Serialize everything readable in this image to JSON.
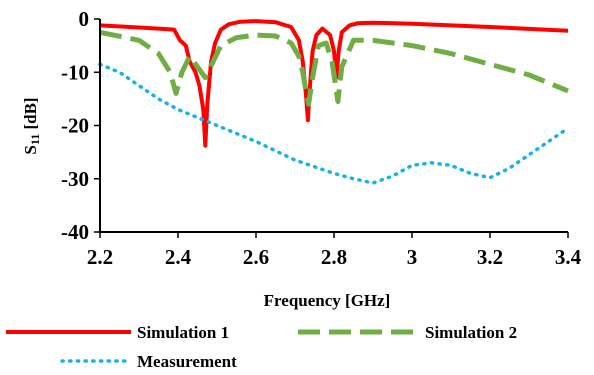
{
  "chart_data": {
    "type": "line",
    "title": "",
    "xlabel": "Frequency [GHz]",
    "ylabel": "S11 [dB]",
    "ylabel_main": "S",
    "ylabel_sub": "11",
    "ylabel_unit": " [dB]",
    "xlim": [
      2.2,
      3.4
    ],
    "ylim": [
      -40,
      0
    ],
    "x_ticks": [
      "2.2",
      "2.4",
      "2.6",
      "2.8",
      "3",
      "3.2",
      "3.4"
    ],
    "x_tick_values": [
      2.2,
      2.4,
      2.6,
      2.8,
      3.0,
      3.2,
      3.4
    ],
    "y_ticks": [
      "0",
      "-10",
      "-20",
      "-30",
      "-40"
    ],
    "y_tick_values": [
      0,
      -10,
      -20,
      -30,
      -40
    ],
    "grid": false,
    "legend_position": "bottom",
    "series": [
      {
        "name": "Simulation 1",
        "color": "#ff0000",
        "style": "solid",
        "x": [
          2.2,
          2.3,
          2.35,
          2.39,
          2.405,
          2.42,
          2.43,
          2.445,
          2.455,
          2.465,
          2.47,
          2.475,
          2.485,
          2.495,
          2.51,
          2.53,
          2.56,
          2.6,
          2.65,
          2.69,
          2.71,
          2.72,
          2.728,
          2.733,
          2.737,
          2.745,
          2.755,
          2.77,
          2.79,
          2.8,
          2.806,
          2.812,
          2.82,
          2.84,
          2.86,
          2.9,
          3.0,
          3.2,
          3.4
        ],
        "y": [
          -1.2,
          -1.6,
          -1.8,
          -2.0,
          -4.0,
          -5.0,
          -8.0,
          -10.0,
          -12.5,
          -17.0,
          -23.8,
          -16.0,
          -8.0,
          -4.5,
          -2.0,
          -1.0,
          -0.5,
          -0.4,
          -0.6,
          -1.5,
          -4.0,
          -8.0,
          -14.0,
          -19.0,
          -14.0,
          -6.0,
          -3.0,
          -1.8,
          -3.0,
          -6.0,
          -11.0,
          -6.0,
          -2.5,
          -1.2,
          -0.8,
          -0.7,
          -0.9,
          -1.5,
          -2.2
        ]
      },
      {
        "name": "Simulation 2",
        "color": "#70ad47",
        "style": "dashed",
        "x": [
          2.2,
          2.3,
          2.35,
          2.38,
          2.395,
          2.41,
          2.43,
          2.45,
          2.47,
          2.49,
          2.51,
          2.55,
          2.6,
          2.65,
          2.69,
          2.71,
          2.72,
          2.728,
          2.735,
          2.745,
          2.76,
          2.78,
          2.795,
          2.803,
          2.81,
          2.82,
          2.85,
          2.9,
          3.0,
          3.1,
          3.2,
          3.3,
          3.4
        ],
        "y": [
          -2.5,
          -4.0,
          -6.5,
          -10.0,
          -14.0,
          -10.0,
          -7.0,
          -9.0,
          -11.0,
          -8.0,
          -5.0,
          -3.5,
          -3.0,
          -3.2,
          -4.5,
          -7.0,
          -10.0,
          -13.5,
          -16.0,
          -11.0,
          -5.0,
          -4.5,
          -8.0,
          -12.0,
          -15.5,
          -9.0,
          -4.0,
          -4.0,
          -5.0,
          -6.5,
          -8.5,
          -10.5,
          -13.5
        ]
      },
      {
        "name": "Measurement",
        "color": "#1ab0e8",
        "style": "dotted",
        "x": [
          2.2,
          2.25,
          2.3,
          2.35,
          2.4,
          2.45,
          2.5,
          2.6,
          2.7,
          2.8,
          2.85,
          2.9,
          2.95,
          3.0,
          3.05,
          3.1,
          3.15,
          3.2,
          3.25,
          3.3,
          3.35,
          3.4
        ],
        "y": [
          -8.5,
          -10.0,
          -12.5,
          -15.0,
          -17.0,
          -18.5,
          -20.0,
          -23.0,
          -26.5,
          -29.0,
          -30.0,
          -30.8,
          -29.5,
          -27.5,
          -27.0,
          -27.5,
          -29.0,
          -29.8,
          -28.0,
          -25.5,
          -23.0,
          -20.5
        ]
      }
    ]
  }
}
